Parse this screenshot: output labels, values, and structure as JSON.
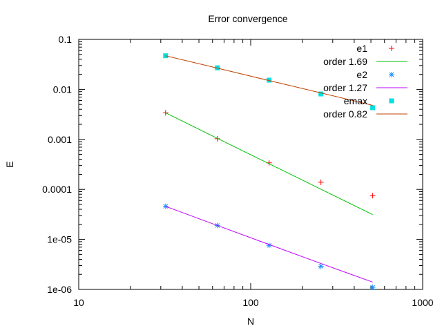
{
  "chart_data": {
    "type": "scatter",
    "title": "Error convergence",
    "xlabel": "N",
    "ylabel": "E",
    "xscale": "log",
    "yscale": "log",
    "xlim": [
      10,
      1000
    ],
    "ylim": [
      1e-06,
      0.1
    ],
    "x_ticks": [
      "10",
      "100",
      "1000"
    ],
    "y_ticks": [
      "0.1",
      "0.01",
      "0.001",
      "0.0001",
      "1e-05",
      "1e-06"
    ],
    "legend_position": "top-right inside",
    "grid": false,
    "x": [
      32,
      64,
      128,
      256,
      512
    ],
    "series": [
      {
        "name": "e1",
        "kind": "points",
        "marker": "plus",
        "color": "#ff0000",
        "values": [
          0.0034,
          0.00103,
          0.00034,
          0.000139,
          7.5e-05
        ]
      },
      {
        "name": "order 1.69",
        "kind": "line",
        "color": "#00c000",
        "values": [
          0.0034,
          0.00105,
          0.000326,
          0.000101,
          3.13e-05
        ]
      },
      {
        "name": "e2",
        "kind": "points",
        "marker": "star",
        "color": "#1e90ff",
        "values": [
          4.6e-05,
          1.9e-05,
          7.6e-06,
          2.9e-06,
          1.1e-06
        ]
      },
      {
        "name": "order 1.27",
        "kind": "line",
        "color": "#c000ff",
        "values": [
          4.58e-05,
          1.9e-05,
          7.9e-06,
          3.3e-06,
          1.4e-06
        ]
      },
      {
        "name": "emax",
        "kind": "points",
        "marker": "filled-square",
        "color": "#00e0e0",
        "values": [
          0.047,
          0.027,
          0.0153,
          0.0081,
          0.0043
        ]
      },
      {
        "name": "order 0.82",
        "kind": "line",
        "color": "#c04000",
        "values": [
          0.047,
          0.0266,
          0.015,
          0.0085,
          0.0048
        ]
      }
    ]
  },
  "legend": {
    "items": [
      "e1",
      "order 1.69",
      "e2",
      "order 1.27",
      "emax",
      "order 0.82"
    ]
  }
}
